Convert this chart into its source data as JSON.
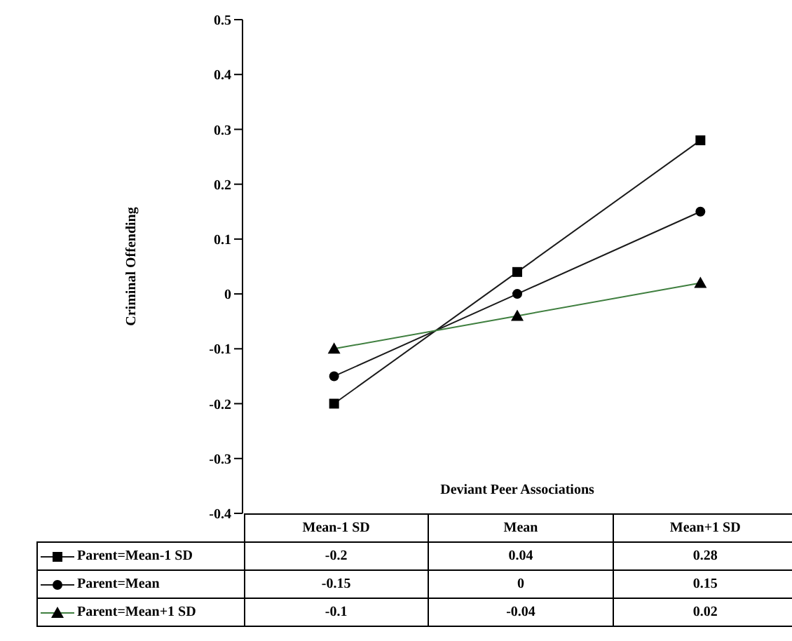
{
  "chart_data": {
    "type": "line",
    "xlabel": "Deviant Peer Associations",
    "ylabel": "Criminal Offending",
    "categories": [
      "Mean-1 SD",
      "Mean",
      "Mean+1 SD"
    ],
    "series": [
      {
        "name": "Parent=Mean-1 SD",
        "color": "#1a1a1a",
        "marker": "square",
        "values": [
          -0.2,
          0.04,
          0.28
        ]
      },
      {
        "name": "Parent=Mean",
        "color": "#1a1a1a",
        "marker": "circle",
        "values": [
          -0.15,
          0,
          0.15
        ]
      },
      {
        "name": "Parent=Mean+1 SD",
        "color": "#3f7f3f",
        "marker": "triangle",
        "values": [
          -0.1,
          -0.04,
          0.02
        ]
      }
    ],
    "ylim": [
      -0.4,
      0.5
    ],
    "yticks": [
      -0.4,
      -0.3,
      -0.2,
      -0.1,
      0,
      0.1,
      0.2,
      0.3,
      0.4,
      0.5
    ],
    "grid": false,
    "legend": "bottom left",
    "data_labels": true
  }
}
